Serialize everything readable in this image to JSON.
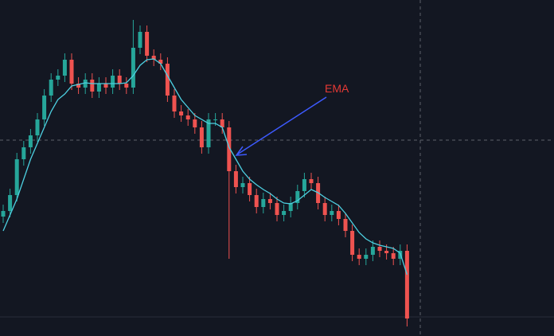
{
  "chart_data": {
    "type": "candlestick",
    "annotation": "EMA",
    "up_color": "#26a69a",
    "down_color": "#ef5350",
    "ylim": [
      0,
      422
    ],
    "open": [
      150,
      157,
      177,
      222,
      237,
      252,
      272,
      302,
      322,
      327,
      347,
      317,
      312,
      322,
      307,
      317,
      312,
      327,
      317,
      312,
      362,
      382,
      352,
      347,
      342,
      302,
      282,
      277,
      272,
      262,
      237,
      272,
      272,
      262,
      207,
      187,
      192,
      177,
      162,
      172,
      167,
      152,
      157,
      167,
      182,
      197,
      192,
      167,
      152,
      157,
      147,
      132,
      102,
      97,
      102,
      112,
      107,
      104,
      97,
      107
    ],
    "high": [
      165,
      185,
      230,
      245,
      260,
      280,
      310,
      330,
      335,
      355,
      355,
      325,
      330,
      330,
      325,
      325,
      335,
      335,
      325,
      397,
      390,
      390,
      360,
      355,
      350,
      310,
      290,
      285,
      280,
      270,
      280,
      280,
      280,
      270,
      215,
      200,
      200,
      185,
      180,
      180,
      175,
      165,
      175,
      190,
      205,
      205,
      200,
      175,
      165,
      165,
      155,
      140,
      110,
      110,
      120,
      120,
      115,
      112,
      115,
      115
    ],
    "low": [
      142,
      149,
      169,
      214,
      229,
      244,
      264,
      294,
      314,
      319,
      309,
      304,
      304,
      299,
      299,
      304,
      304,
      309,
      304,
      304,
      354,
      344,
      339,
      334,
      294,
      274,
      269,
      264,
      254,
      229,
      229,
      264,
      254,
      97,
      179,
      179,
      169,
      154,
      154,
      159,
      144,
      144,
      149,
      159,
      174,
      184,
      159,
      144,
      144,
      139,
      124,
      94,
      89,
      89,
      94,
      99,
      96,
      89,
      89,
      12
    ],
    "close": [
      157,
      177,
      222,
      237,
      252,
      272,
      302,
      322,
      327,
      347,
      317,
      312,
      322,
      307,
      317,
      312,
      327,
      317,
      312,
      362,
      382,
      352,
      347,
      342,
      302,
      282,
      277,
      272,
      262,
      237,
      272,
      272,
      262,
      207,
      187,
      192,
      177,
      162,
      172,
      167,
      152,
      157,
      167,
      182,
      197,
      192,
      167,
      152,
      157,
      147,
      132,
      102,
      97,
      102,
      112,
      107,
      104,
      97,
      107,
      22
    ],
    "series": [
      {
        "name": "EMA",
        "color": "#4dd0e1",
        "values": [
          132,
          152,
          172,
          197,
          222,
          242,
          262,
          282,
          297,
          304,
          314,
          316,
          318,
          317,
          317,
          317,
          317,
          317,
          318,
          327,
          340,
          347,
          348,
          342,
          327,
          312,
          297,
          287,
          277,
          272,
          267,
          267,
          262,
          237,
          222,
          207,
          197,
          190,
          184,
          179,
          172,
          167,
          166,
          170,
          177,
          184,
          180,
          174,
          169,
          164,
          154,
          142,
          130,
          122,
          117,
          114,
          112,
          110,
          104,
          77
        ]
      }
    ]
  }
}
